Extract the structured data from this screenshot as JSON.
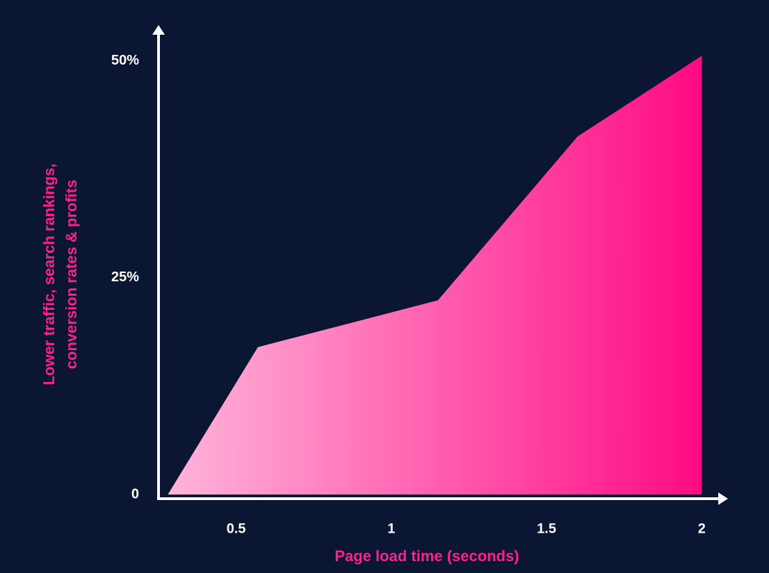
{
  "chart_data": {
    "type": "area",
    "x": [
      0.28,
      0.57,
      1.15,
      1.6,
      2.0
    ],
    "values": [
      0,
      17,
      22.4,
      41.3,
      50.6
    ],
    "xlim": [
      0.25,
      2.08
    ],
    "ylim": [
      0,
      54
    ],
    "xticks": [
      0.5,
      1,
      1.5,
      2
    ],
    "yticks": [
      0,
      {
        "value": 25,
        "label": "25%"
      },
      {
        "value": 50,
        "label": "50%"
      }
    ],
    "xlabel": "Page load time (seconds)",
    "ylabel": [
      "Lower traffic, search rankings,",
      "conversion rates & profits"
    ],
    "color_start": "#ffb5da",
    "color_end": "#ff0a84",
    "grid": false
  }
}
